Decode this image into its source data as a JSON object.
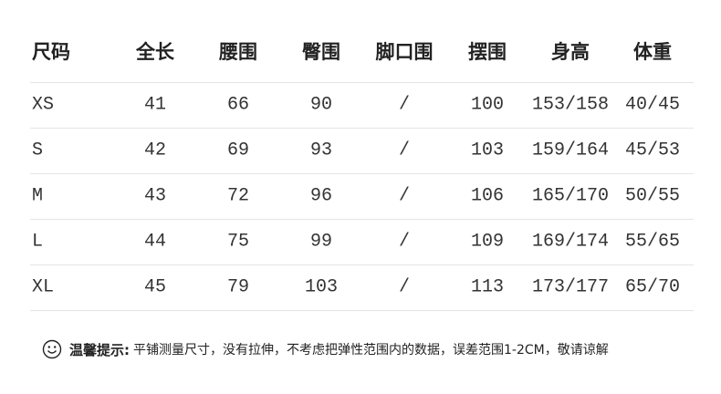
{
  "table": {
    "headers": [
      "尺码",
      "全长",
      "腰围",
      "臀围",
      "脚口围",
      "摆围",
      "身高",
      "体重"
    ],
    "rows": [
      [
        "XS",
        41,
        66,
        90,
        "/",
        100,
        "153/158",
        "40/45"
      ],
      [
        "S",
        42,
        69,
        93,
        "/",
        103,
        "159/164",
        "45/53"
      ],
      [
        "M",
        43,
        72,
        96,
        "/",
        106,
        "165/170",
        "50/55"
      ],
      [
        "L",
        44,
        75,
        99,
        "/",
        109,
        "169/174",
        "55/65"
      ],
      [
        "XL",
        45,
        79,
        103,
        "/",
        113,
        "173/177",
        "65/70"
      ]
    ]
  },
  "note": {
    "label": "温馨提示:",
    "text": "平铺测量尺寸，没有拉伸，不考虑把弹性范围内的数据，误差范围1-2CM，敬请谅解"
  }
}
